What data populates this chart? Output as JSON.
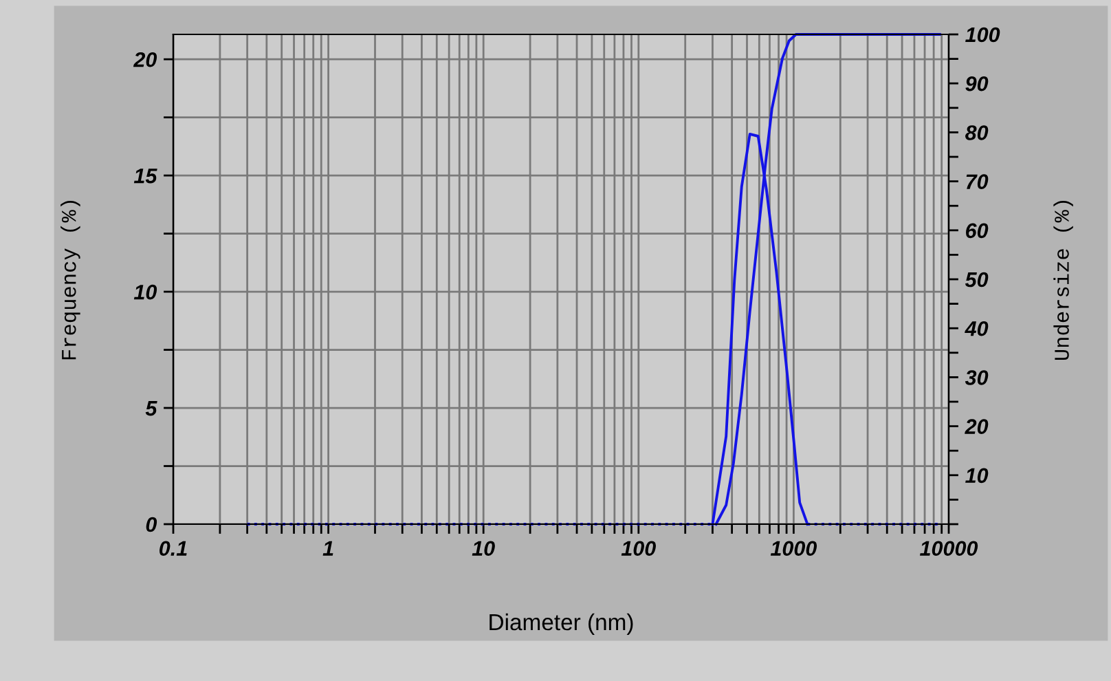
{
  "chart_data": {
    "type": "line",
    "xlabel": "Diameter (nm)",
    "ylabel": "Frequency (%)",
    "y2label": "Undersize (%)",
    "log": "x",
    "grid": true,
    "marker": "none",
    "xlim": [
      0.1,
      10000
    ],
    "ylim": [
      0,
      21.07
    ],
    "y2lim": [
      0,
      100
    ],
    "xticks": [
      0.1,
      {
        "value": 0.2,
        "label": null
      },
      {
        "value": 0.3,
        "label": null
      },
      {
        "value": 0.4,
        "label": null
      },
      {
        "value": 0.5,
        "label": null
      },
      {
        "value": 0.6,
        "label": null
      },
      {
        "value": 0.7,
        "label": null
      },
      {
        "value": 0.8,
        "label": null
      },
      {
        "value": 0.9,
        "label": null
      },
      1,
      {
        "value": 2,
        "label": null
      },
      {
        "value": 3,
        "label": null
      },
      {
        "value": 4,
        "label": null
      },
      {
        "value": 5,
        "label": null
      },
      {
        "value": 6,
        "label": null
      },
      {
        "value": 7,
        "label": null
      },
      {
        "value": 8,
        "label": null
      },
      {
        "value": 9,
        "label": null
      },
      10,
      {
        "value": 20,
        "label": null
      },
      {
        "value": 30,
        "label": null
      },
      {
        "value": 40,
        "label": null
      },
      {
        "value": 50,
        "label": null
      },
      {
        "value": 60,
        "label": null
      },
      {
        "value": 70,
        "label": null
      },
      {
        "value": 80,
        "label": null
      },
      {
        "value": 90,
        "label": null
      },
      100,
      {
        "value": 200,
        "label": null
      },
      {
        "value": 300,
        "label": null
      },
      {
        "value": 400,
        "label": null
      },
      {
        "value": 500,
        "label": null
      },
      {
        "value": 600,
        "label": null
      },
      {
        "value": 700,
        "label": null
      },
      {
        "value": 800,
        "label": null
      },
      {
        "value": 900,
        "label": null
      },
      1000,
      {
        "value": 2000,
        "label": null
      },
      {
        "value": 3000,
        "label": null
      },
      {
        "value": 4000,
        "label": null
      },
      {
        "value": 5000,
        "label": null
      },
      {
        "value": 6000,
        "label": null
      },
      {
        "value": 7000,
        "label": null
      },
      {
        "value": 8000,
        "label": null
      },
      {
        "value": 9000,
        "label": null
      },
      10000
    ],
    "yticks": [
      0,
      {
        "value": 2.5,
        "label": null
      },
      5,
      {
        "value": 7.5,
        "label": null
      },
      10,
      {
        "value": 12.5,
        "label": null
      },
      15,
      {
        "value": 17.5,
        "label": null
      },
      20
    ],
    "y2ticks": [
      {
        "value": 0,
        "label": null
      },
      {
        "value": 5,
        "label": null
      },
      10,
      {
        "value": 15,
        "label": null
      },
      20,
      {
        "value": 25,
        "label": null
      },
      30,
      {
        "value": 35,
        "label": null
      },
      40,
      {
        "value": 45,
        "label": null
      },
      50,
      {
        "value": 55,
        "label": null
      },
      60,
      {
        "value": 65,
        "label": null
      },
      70,
      {
        "value": 75,
        "label": null
      },
      80,
      {
        "value": 85,
        "label": null
      },
      90,
      {
        "value": 95,
        "label": null
      },
      100
    ],
    "series": [
      {
        "color": "#1414e6",
        "line_style": "solid",
        "x": [
          300,
          367,
          415,
          462,
          522,
          590,
          667,
          774,
          906,
          1002,
          1094,
          1227
        ],
        "values": [
          0,
          3.78,
          10.48,
          14.52,
          16.78,
          16.69,
          14.42,
          10.87,
          6.54,
          3.59,
          0.93,
          0
        ]
      },
      {
        "color": "#1414e6",
        "line_style": "dotted",
        "x": [
          0.3,
          300,
          600,
          1227,
          9000
        ],
        "values": [
          0,
          0,
          null,
          0,
          0
        ]
      },
      {
        "color": "#1414e6",
        "line_style": "solid",
        "axis": "y2",
        "x": [
          316,
          367,
          409,
          462,
          522,
          582,
          658,
          724,
          846,
          935,
          1035,
          8750
        ],
        "values": [
          0,
          3.9,
          12.4,
          26.5,
          43.4,
          57.5,
          73.5,
          84.8,
          95.1,
          98.7,
          100,
          100
        ]
      }
    ]
  }
}
